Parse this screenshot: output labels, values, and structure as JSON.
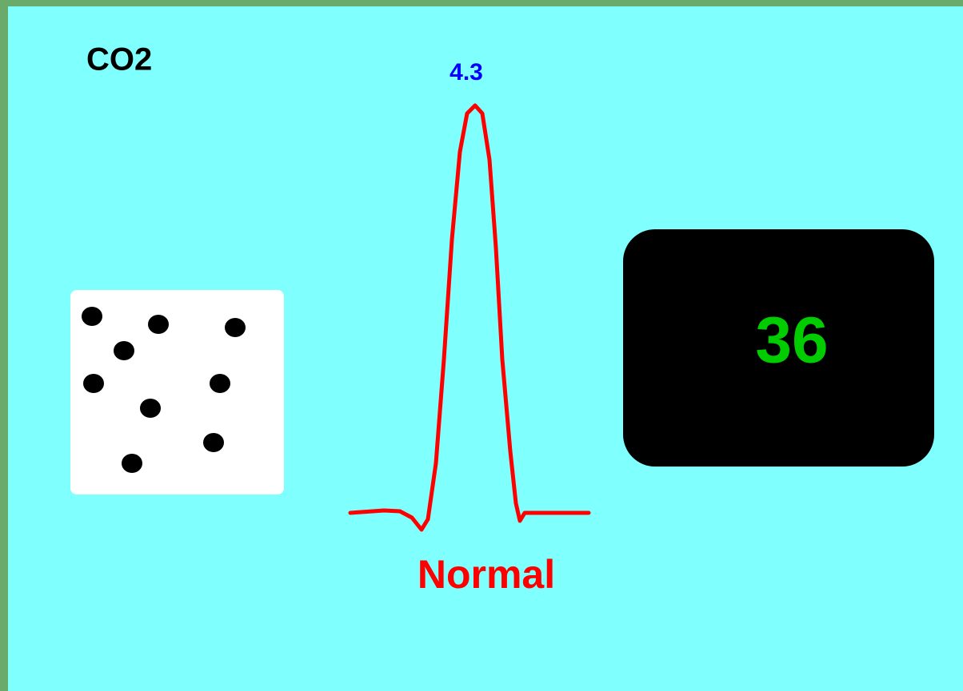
{
  "label": "CO2",
  "peak_value": "4.3",
  "status": "Normal",
  "display_value": "36"
}
